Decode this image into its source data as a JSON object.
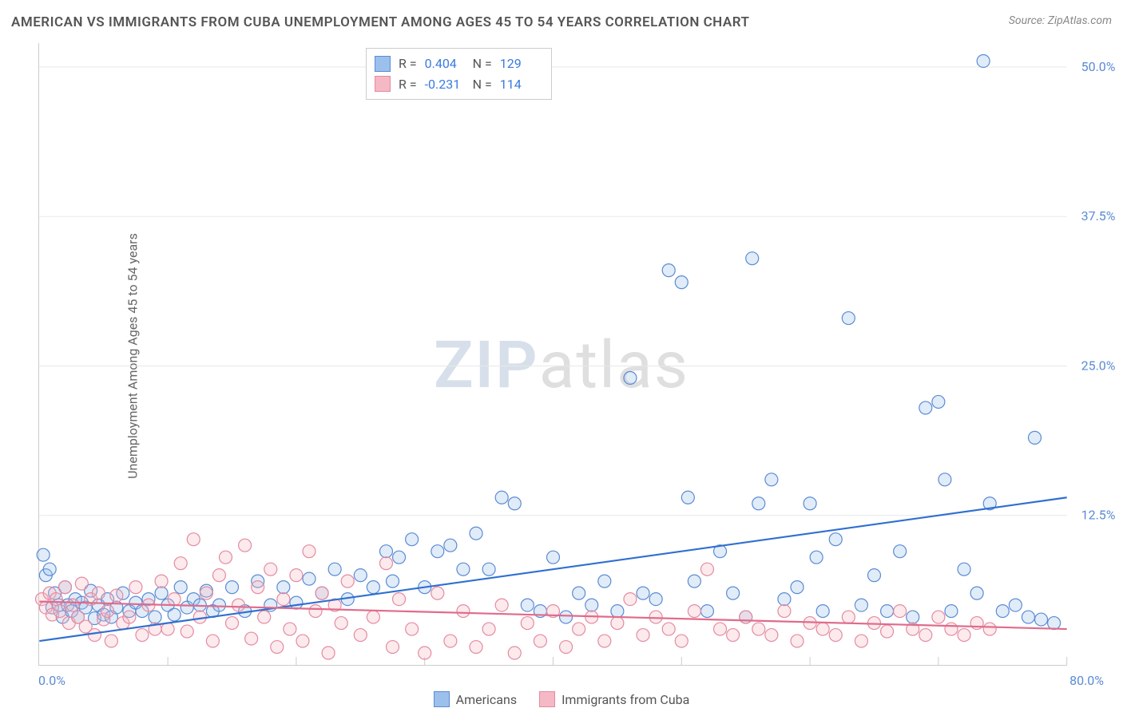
{
  "title": "AMERICAN VS IMMIGRANTS FROM CUBA UNEMPLOYMENT AMONG AGES 45 TO 54 YEARS CORRELATION CHART",
  "source_prefix": "Source: ",
  "source_link": "ZipAtlas.com",
  "y_axis_label": "Unemployment Among Ages 45 to 54 years",
  "watermark": {
    "part1": "ZIP",
    "part2": "atlas"
  },
  "chart": {
    "type": "scatter",
    "xlim": [
      0,
      80
    ],
    "ylim": [
      0,
      52
    ],
    "x_start_label": "0.0%",
    "x_end_label": "80.0%",
    "y_ticks": [
      {
        "value": 12.5,
        "label": "12.5%"
      },
      {
        "value": 25.0,
        "label": "25.0%"
      },
      {
        "value": 37.5,
        "label": "37.5%"
      },
      {
        "value": 50.0,
        "label": "50.0%"
      }
    ],
    "x_gridlines": [
      10,
      20,
      30,
      40,
      50,
      60,
      70,
      80
    ],
    "background_color": "#ffffff",
    "grid_color": "#e8e8e8",
    "axis_color": "#cccccc",
    "tick_label_color": "#5b8bd4",
    "marker_radius": 8,
    "marker_stroke_width": 1.2,
    "marker_fill_opacity": 0.3,
    "trend_line_width": 2.2,
    "series": [
      {
        "name": "Americans",
        "fill_color": "#9cc0ec",
        "stroke_color": "#5b8bd4",
        "line_color": "#2f6fd0",
        "trend": {
          "x1": 0,
          "y1": 2.0,
          "x2": 80,
          "y2": 14.0
        },
        "correlation": {
          "R": "0.404",
          "N": "129",
          "value_color": "#3a7be0"
        },
        "points": [
          [
            0.3,
            9.2
          ],
          [
            0.5,
            7.5
          ],
          [
            0.8,
            8.0
          ],
          [
            1.0,
            4.8
          ],
          [
            1.2,
            6.0
          ],
          [
            1.5,
            5.0
          ],
          [
            1.8,
            4.0
          ],
          [
            2.0,
            6.5
          ],
          [
            2.2,
            5.0
          ],
          [
            2.5,
            4.5
          ],
          [
            2.8,
            5.5
          ],
          [
            3.0,
            4.0
          ],
          [
            3.3,
            5.2
          ],
          [
            3.6,
            4.8
          ],
          [
            4.0,
            6.2
          ],
          [
            4.3,
            3.9
          ],
          [
            4.6,
            5.0
          ],
          [
            5.0,
            4.2
          ],
          [
            5.3,
            5.5
          ],
          [
            5.6,
            4.0
          ],
          [
            6.0,
            4.8
          ],
          [
            6.5,
            6.0
          ],
          [
            7.0,
            4.5
          ],
          [
            7.5,
            5.2
          ],
          [
            8.0,
            4.5
          ],
          [
            8.5,
            5.5
          ],
          [
            9.0,
            4.0
          ],
          [
            9.5,
            6.0
          ],
          [
            10,
            5.0
          ],
          [
            10.5,
            4.2
          ],
          [
            11,
            6.5
          ],
          [
            11.5,
            4.8
          ],
          [
            12,
            5.5
          ],
          [
            12.5,
            5.0
          ],
          [
            13,
            6.2
          ],
          [
            13.5,
            4.5
          ],
          [
            14,
            5.0
          ],
          [
            15,
            6.5
          ],
          [
            16,
            4.5
          ],
          [
            17,
            7.0
          ],
          [
            18,
            5.0
          ],
          [
            19,
            6.5
          ],
          [
            20,
            5.2
          ],
          [
            21,
            7.2
          ],
          [
            22,
            6.0
          ],
          [
            23,
            8.0
          ],
          [
            24,
            5.5
          ],
          [
            25,
            7.5
          ],
          [
            26,
            6.5
          ],
          [
            27,
            9.5
          ],
          [
            27.5,
            7.0
          ],
          [
            28,
            9.0
          ],
          [
            29,
            10.5
          ],
          [
            30,
            6.5
          ],
          [
            31,
            9.5
          ],
          [
            32,
            10.0
          ],
          [
            33,
            8.0
          ],
          [
            34,
            11.0
          ],
          [
            35,
            8.0
          ],
          [
            36,
            14.0
          ],
          [
            37,
            13.5
          ],
          [
            38,
            5.0
          ],
          [
            39,
            4.5
          ],
          [
            40,
            9.0
          ],
          [
            41,
            4.0
          ],
          [
            42,
            6.0
          ],
          [
            43,
            5.0
          ],
          [
            44,
            7.0
          ],
          [
            45,
            4.5
          ],
          [
            46,
            24.0
          ],
          [
            47,
            6.0
          ],
          [
            48,
            5.5
          ],
          [
            49,
            33.0
          ],
          [
            50,
            32.0
          ],
          [
            50.5,
            14.0
          ],
          [
            51,
            7.0
          ],
          [
            52,
            4.5
          ],
          [
            53,
            9.5
          ],
          [
            54,
            6.0
          ],
          [
            55,
            4.0
          ],
          [
            55.5,
            34.0
          ],
          [
            56,
            13.5
          ],
          [
            57,
            15.5
          ],
          [
            58,
            5.5
          ],
          [
            59,
            6.5
          ],
          [
            60,
            13.5
          ],
          [
            60.5,
            9.0
          ],
          [
            61,
            4.5
          ],
          [
            62,
            10.5
          ],
          [
            63,
            29.0
          ],
          [
            64,
            5.0
          ],
          [
            65,
            7.5
          ],
          [
            66,
            4.5
          ],
          [
            67,
            9.5
          ],
          [
            68,
            4.0
          ],
          [
            69,
            21.5
          ],
          [
            70,
            22.0
          ],
          [
            70.5,
            15.5
          ],
          [
            71,
            4.5
          ],
          [
            72,
            8.0
          ],
          [
            73,
            6.0
          ],
          [
            73.5,
            50.5
          ],
          [
            74,
            13.5
          ],
          [
            75,
            4.5
          ],
          [
            76,
            5.0
          ],
          [
            77,
            4.0
          ],
          [
            77.5,
            19.0
          ],
          [
            78,
            3.8
          ],
          [
            79,
            3.5
          ]
        ]
      },
      {
        "name": "Immigrants from Cuba",
        "fill_color": "#f5b8c5",
        "stroke_color": "#e48ba1",
        "line_color": "#e06b8b",
        "trend": {
          "x1": 0,
          "y1": 5.3,
          "x2": 80,
          "y2": 3.0
        },
        "correlation": {
          "R": "-0.231",
          "N": "114",
          "value_color": "#3a7be0"
        },
        "points": [
          [
            0.2,
            5.5
          ],
          [
            0.5,
            4.8
          ],
          [
            0.8,
            6.0
          ],
          [
            1.0,
            4.2
          ],
          [
            1.3,
            5.5
          ],
          [
            1.6,
            4.5
          ],
          [
            2.0,
            6.5
          ],
          [
            2.3,
            3.5
          ],
          [
            2.6,
            5.0
          ],
          [
            3.0,
            4.0
          ],
          [
            3.3,
            6.8
          ],
          [
            3.6,
            3.2
          ],
          [
            4.0,
            5.5
          ],
          [
            4.3,
            2.5
          ],
          [
            4.6,
            6.0
          ],
          [
            5.0,
            3.8
          ],
          [
            5.3,
            4.5
          ],
          [
            5.6,
            2.0
          ],
          [
            6.0,
            5.8
          ],
          [
            6.5,
            3.5
          ],
          [
            7.0,
            4.0
          ],
          [
            7.5,
            6.5
          ],
          [
            8.0,
            2.5
          ],
          [
            8.5,
            5.0
          ],
          [
            9.0,
            3.0
          ],
          [
            9.5,
            7.0
          ],
          [
            10,
            3.0
          ],
          [
            10.5,
            5.5
          ],
          [
            11,
            8.5
          ],
          [
            11.5,
            2.8
          ],
          [
            12,
            10.5
          ],
          [
            12.5,
            4.0
          ],
          [
            13,
            6.0
          ],
          [
            13.5,
            2.0
          ],
          [
            14,
            7.5
          ],
          [
            14.5,
            9.0
          ],
          [
            15,
            3.5
          ],
          [
            15.5,
            5.0
          ],
          [
            16,
            10.0
          ],
          [
            16.5,
            2.2
          ],
          [
            17,
            6.5
          ],
          [
            17.5,
            4.0
          ],
          [
            18,
            8.0
          ],
          [
            18.5,
            1.5
          ],
          [
            19,
            5.5
          ],
          [
            19.5,
            3.0
          ],
          [
            20,
            7.5
          ],
          [
            20.5,
            2.0
          ],
          [
            21,
            9.5
          ],
          [
            21.5,
            4.5
          ],
          [
            22,
            6.0
          ],
          [
            22.5,
            1.0
          ],
          [
            23,
            5.0
          ],
          [
            23.5,
            3.5
          ],
          [
            24,
            7.0
          ],
          [
            25,
            2.5
          ],
          [
            26,
            4.0
          ],
          [
            27,
            8.5
          ],
          [
            27.5,
            1.5
          ],
          [
            28,
            5.5
          ],
          [
            29,
            3.0
          ],
          [
            30,
            1.0
          ],
          [
            31,
            6.0
          ],
          [
            32,
            2.0
          ],
          [
            33,
            4.5
          ],
          [
            34,
            1.5
          ],
          [
            35,
            3.0
          ],
          [
            36,
            5.0
          ],
          [
            37,
            1.0
          ],
          [
            38,
            3.5
          ],
          [
            39,
            2.0
          ],
          [
            40,
            4.5
          ],
          [
            41,
            1.5
          ],
          [
            42,
            3.0
          ],
          [
            43,
            4.0
          ],
          [
            44,
            2.0
          ],
          [
            45,
            3.5
          ],
          [
            46,
            5.5
          ],
          [
            47,
            2.5
          ],
          [
            48,
            4.0
          ],
          [
            49,
            3.0
          ],
          [
            50,
            2.0
          ],
          [
            51,
            4.5
          ],
          [
            52,
            8.0
          ],
          [
            53,
            3.0
          ],
          [
            54,
            2.5
          ],
          [
            55,
            4.0
          ],
          [
            56,
            3.0
          ],
          [
            57,
            2.5
          ],
          [
            58,
            4.5
          ],
          [
            59,
            2.0
          ],
          [
            60,
            3.5
          ],
          [
            61,
            3.0
          ],
          [
            62,
            2.5
          ],
          [
            63,
            4.0
          ],
          [
            64,
            2.0
          ],
          [
            65,
            3.5
          ],
          [
            66,
            2.8
          ],
          [
            67,
            4.5
          ],
          [
            68,
            3.0
          ],
          [
            69,
            2.5
          ],
          [
            70,
            4.0
          ],
          [
            71,
            3.0
          ],
          [
            72,
            2.5
          ],
          [
            73,
            3.5
          ],
          [
            74,
            3.0
          ]
        ]
      }
    ]
  },
  "legend": {
    "series1_label": "Americans",
    "series2_label": "Immigrants from Cuba"
  },
  "corr_box": {
    "r_label": "R =",
    "n_label": "N ="
  }
}
